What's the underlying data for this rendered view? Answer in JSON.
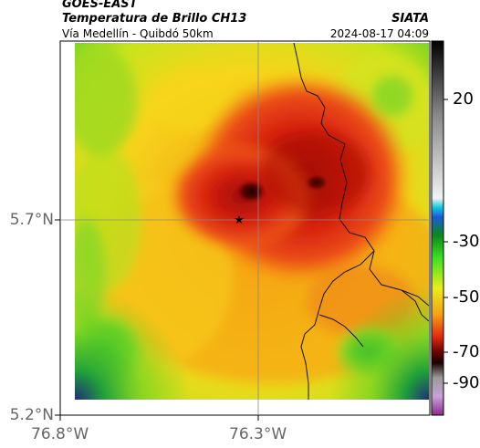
{
  "header": {
    "satellite": "GOES-EAST",
    "product": "Temperatura de Brillo CH13",
    "region": "Vía Medellín - Quibdó 50km",
    "organization": "SIATA",
    "timestamp": "2024-08-17 04:09"
  },
  "axes": {
    "y_ticks": [
      "5.7°N",
      "5.2°N"
    ],
    "x_ticks": [
      "76.8°W",
      "76.3°W"
    ]
  },
  "colorbar": {
    "ticks": [
      "20",
      "-30",
      "-50",
      "-70",
      "-90"
    ]
  },
  "colors": {
    "warm": "#1fae2a",
    "mid": "#f6e51b",
    "cold": "#d21c12",
    "coldest": "#3b0000"
  }
}
